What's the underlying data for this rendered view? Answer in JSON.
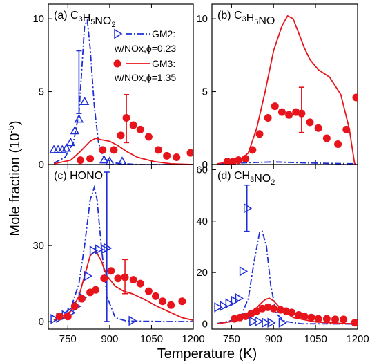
{
  "chart_data": {
    "type": "scatter",
    "xlabel": "Temperature (K)",
    "ylabel": "Mole fraction (10",
    "ylabel_exp": "-5",
    "ylabel_close": ")",
    "xlim": [
      680,
      1200
    ],
    "xticks": [
      750,
      900,
      1050,
      1200
    ],
    "colors": {
      "gm2": "#1f2fd6",
      "gm3": "#e8141c"
    },
    "legend": {
      "placement": "top-right of panel (a)",
      "gm2_line1": "GM2:",
      "gm2_line2": "w/NOx,ϕ=0.23",
      "gm3_line1": "GM3:",
      "gm3_line2": "w/NOx,ϕ=1.35"
    },
    "panels": [
      {
        "label": "(a) C3H5NO2",
        "ylim": [
          0,
          11
        ],
        "yticks": [
          0,
          5,
          10
        ],
        "yticklabels": [
          "0",
          "5",
          "10"
        ],
        "gm2_exp": {
          "x": [
            700,
            715,
            730,
            745,
            760,
            775,
            790,
            810,
            880,
            900,
            945
          ],
          "y": [
            1.0,
            1.0,
            1.0,
            1.1,
            1.5,
            2.3,
            3.1,
            4.3,
            0.3,
            0.2,
            0.2
          ]
        },
        "gm2_err": [
          {
            "x": 790,
            "y": 4.3,
            "lo": 3.5,
            "hi": 7.8
          }
        ],
        "gm2_model": {
          "x": [
            700,
            740,
            770,
            790,
            800,
            810,
            820,
            830,
            845,
            860,
            880,
            920,
            1000,
            1200
          ],
          "y": [
            0.1,
            0.5,
            1.5,
            3.5,
            6.5,
            9.5,
            9.9,
            8.0,
            4.0,
            1.5,
            0.4,
            0.1,
            0,
            0
          ]
        },
        "gm3_exp": {
          "x": [
            795,
            830,
            875,
            915,
            940,
            960,
            985,
            1010,
            1040,
            1075,
            1105,
            1140,
            1190
          ],
          "y": [
            0.3,
            0.4,
            1.0,
            1.0,
            2.0,
            3.2,
            2.7,
            2.4,
            1.9,
            1.0,
            0.6,
            0.5,
            0.8
          ]
        },
        "gm3_err": [
          {
            "x": 960,
            "y": 3.2,
            "lo": 1.5,
            "hi": 4.8
          }
        ],
        "gm3_model": {
          "x": [
            700,
            760,
            790,
            810,
            830,
            850,
            870,
            900,
            930,
            960,
            1000,
            1060,
            1120,
            1200
          ],
          "y": [
            0.05,
            0.3,
            0.8,
            1.2,
            1.6,
            1.8,
            1.7,
            1.6,
            1.3,
            0.9,
            0.5,
            0.2,
            0.05,
            0
          ]
        }
      },
      {
        "label": "(b) C3H5NO",
        "ylim": [
          0,
          11
        ],
        "yticks": [
          0,
          5,
          10
        ],
        "yticklabels": [
          "0",
          "5",
          "10"
        ],
        "gm2_exp": {
          "x": [],
          "y": []
        },
        "gm2_err": [],
        "gm2_model": {
          "x": [
            700,
            750,
            800,
            850,
            900,
            950,
            1000,
            1050,
            1100,
            1150,
            1200
          ],
          "y": [
            0.05,
            0.08,
            0.12,
            0.15,
            0.18,
            0.15,
            0.12,
            0.1,
            0.08,
            0.06,
            0.05
          ]
        },
        "gm3_exp": {
          "x": [
            735,
            755,
            775,
            800,
            825,
            850,
            880,
            905,
            930,
            955,
            980,
            1000,
            1030,
            1060,
            1090,
            1130,
            1160,
            1195
          ],
          "y": [
            0.2,
            0.2,
            0.3,
            0.4,
            1.0,
            2.1,
            3.2,
            4.0,
            3.6,
            3.4,
            3.6,
            3.5,
            2.9,
            2.5,
            1.8,
            1.4,
            2.4,
            4.6
          ]
        },
        "gm3_err": [
          {
            "x": 1000,
            "y": 3.5,
            "lo": 2.2,
            "hi": 5.3
          }
        ],
        "gm3_model": {
          "x": [
            700,
            780,
            810,
            840,
            870,
            900,
            930,
            950,
            970,
            990,
            1010,
            1030,
            1060,
            1100,
            1140,
            1170,
            1190
          ],
          "y": [
            0.05,
            0.3,
            0.8,
            2.5,
            5.0,
            7.8,
            9.5,
            10.2,
            10.0,
            9.0,
            8.0,
            7.2,
            6.5,
            6.0,
            4.8,
            2.5,
            0.0
          ]
        }
      },
      {
        "label": "(c) HONO",
        "ylim": [
          -3,
          62
        ],
        "yticks": [
          0,
          30
        ],
        "yticklabels": [
          "0",
          "30"
        ],
        "gm2_exp": {
          "x": [
            700,
            720,
            740,
            760,
            780,
            800,
            820,
            840,
            860,
            880,
            890,
            980
          ],
          "y": [
            1.0,
            1.5,
            2.5,
            3.5,
            6.0,
            9.5,
            18.0,
            28.0,
            28.5,
            28.5,
            29.0,
            0.3
          ]
        },
        "gm2_err": [
          {
            "x": 890,
            "y": 29.0,
            "lo": 0,
            "hi": 59
          }
        ],
        "gm2_model": {
          "x": [
            700,
            760,
            790,
            810,
            830,
            845,
            855,
            870,
            890,
            920,
            960,
            1100,
            1200
          ],
          "y": [
            0.5,
            5.0,
            15.0,
            30.0,
            48.0,
            53.0,
            48.0,
            30.0,
            10.0,
            1.5,
            0.2,
            0,
            0
          ]
        },
        "gm3_exp": {
          "x": [
            720,
            750,
            775,
            800,
            830,
            850,
            880,
            905,
            930,
            955,
            985,
            1010,
            1040,
            1065,
            1090,
            1120,
            1160
          ],
          "y": [
            2.0,
            2.0,
            6.0,
            9.0,
            11.5,
            12.5,
            17.0,
            20.0,
            17.0,
            17.5,
            16.5,
            15.0,
            12.0,
            10.0,
            8.0,
            6.5,
            8.0
          ]
        },
        "gm3_err": [
          {
            "x": 955,
            "y": 17.5,
            "lo": 11.0,
            "hi": 24.5
          }
        ],
        "gm3_model": {
          "x": [
            700,
            760,
            790,
            810,
            830,
            850,
            870,
            890,
            920,
            950,
            980,
            1020,
            1070,
            1120,
            1160,
            1200
          ],
          "y": [
            0.5,
            4.0,
            10.0,
            18.0,
            26.0,
            28.0,
            24.0,
            18.0,
            14.0,
            12.0,
            11.0,
            9.0,
            6.0,
            3.5,
            1.5,
            0.5
          ]
        }
      },
      {
        "label": "(d) CH3NO2",
        "ylim": [
          -2,
          62
        ],
        "yticks": [
          0,
          20,
          40,
          60
        ],
        "yticklabels": [
          "0",
          "20",
          "40",
          "60"
        ],
        "gm2_exp": {
          "x": [
            700,
            720,
            740,
            760,
            775,
            790,
            805,
            825,
            845,
            870,
            890,
            930
          ],
          "y": [
            6.5,
            7.0,
            8.0,
            9.0,
            10.0,
            20.5,
            45.0,
            1.0,
            1.0,
            0.5,
            0.5,
            0.5
          ]
        },
        "gm2_err": [
          {
            "x": 805,
            "y": 45.0,
            "lo": 36.0,
            "hi": 54.0
          }
        ],
        "gm2_model": {
          "x": [
            700,
            780,
            810,
            830,
            850,
            860,
            875,
            890,
            910,
            940,
            1000,
            1200
          ],
          "y": [
            0.2,
            2.0,
            10.0,
            24.0,
            35.5,
            36.0,
            30.0,
            15.0,
            4.0,
            1.0,
            0.1,
            0
          ]
        },
        "gm3_exp": {
          "x": [
            760,
            780,
            800,
            820,
            840,
            860,
            880,
            900,
            925,
            945,
            965,
            990,
            1010,
            1035,
            1060,
            1090,
            1120,
            1150,
            1190
          ],
          "y": [
            2.0,
            2.5,
            3.0,
            4.0,
            5.0,
            6.0,
            6.5,
            6.0,
            5.5,
            5.0,
            4.5,
            3.5,
            3.0,
            2.5,
            2.0,
            2.0,
            1.8,
            1.8,
            0.5
          ]
        },
        "gm3_err": [],
        "gm3_model": {
          "x": [
            700,
            780,
            820,
            850,
            870,
            885,
            900,
            930,
            970,
            1050,
            1150,
            1200
          ],
          "y": [
            0.1,
            1.5,
            4.0,
            7.5,
            9.5,
            10.0,
            9.0,
            5.5,
            2.5,
            0.8,
            0.2,
            0.1
          ]
        }
      }
    ]
  }
}
